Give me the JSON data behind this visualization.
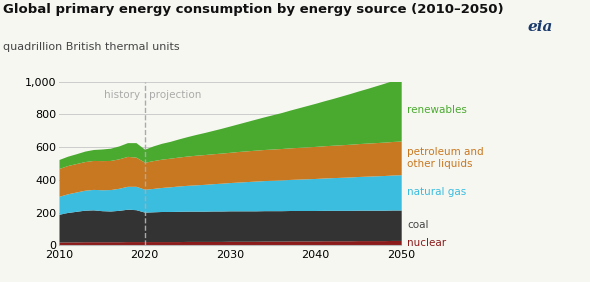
{
  "title": "Global primary energy consumption by energy source (2010–2050)",
  "subtitle": "quadrillion British thermal units",
  "years": [
    2010,
    2011,
    2012,
    2013,
    2014,
    2015,
    2016,
    2017,
    2018,
    2019,
    2020,
    2021,
    2022,
    2023,
    2024,
    2025,
    2026,
    2027,
    2028,
    2029,
    2030,
    2031,
    2032,
    2033,
    2034,
    2035,
    2036,
    2037,
    2038,
    2039,
    2040,
    2041,
    2042,
    2043,
    2044,
    2045,
    2046,
    2047,
    2048,
    2049,
    2050
  ],
  "nuclear": [
    20,
    21,
    21,
    22,
    22,
    22,
    22,
    22,
    23,
    23,
    23,
    23,
    23,
    23,
    23,
    24,
    24,
    24,
    24,
    24,
    25,
    25,
    25,
    25,
    26,
    26,
    26,
    27,
    27,
    27,
    27,
    28,
    28,
    28,
    28,
    29,
    29,
    29,
    29,
    30,
    30
  ],
  "coal": [
    170,
    180,
    187,
    193,
    195,
    190,
    188,
    192,
    198,
    195,
    180,
    182,
    184,
    184,
    185,
    185,
    185,
    185,
    186,
    186,
    186,
    186,
    186,
    186,
    186,
    186,
    186,
    186,
    186,
    186,
    186,
    186,
    186,
    186,
    186,
    186,
    186,
    186,
    186,
    186,
    186
  ],
  "natural_gas": [
    110,
    114,
    118,
    122,
    125,
    128,
    131,
    135,
    140,
    143,
    140,
    143,
    147,
    151,
    155,
    158,
    161,
    164,
    167,
    170,
    173,
    176,
    179,
    182,
    184,
    186,
    188,
    190,
    192,
    194,
    196,
    198,
    200,
    202,
    204,
    206,
    208,
    210,
    212,
    214,
    216
  ],
  "petroleum": [
    170,
    173,
    174,
    175,
    177,
    178,
    178,
    180,
    183,
    178,
    165,
    170,
    173,
    175,
    177,
    179,
    181,
    182,
    183,
    184,
    185,
    187,
    188,
    189,
    190,
    191,
    192,
    193,
    194,
    195,
    196,
    197,
    198,
    199,
    200,
    201,
    202,
    203,
    204,
    205,
    206
  ],
  "renewables": [
    55,
    57,
    60,
    64,
    67,
    71,
    75,
    79,
    84,
    89,
    80,
    90,
    97,
    103,
    111,
    119,
    127,
    135,
    143,
    152,
    161,
    170,
    180,
    190,
    200,
    210,
    220,
    231,
    242,
    253,
    264,
    275,
    286,
    298,
    310,
    322,
    334,
    347,
    360,
    373,
    385
  ],
  "colors": {
    "nuclear": "#8b1a1a",
    "coal": "#333333",
    "natural_gas": "#3bbde0",
    "petroleum": "#c87820",
    "renewables": "#4aaa30"
  },
  "labels": {
    "nuclear": "nuclear",
    "coal": "coal",
    "natural_gas": "natural gas",
    "petroleum": "petroleum and\nother liquids",
    "renewables": "renewables"
  },
  "label_colors": {
    "nuclear": "#8b1a1a",
    "coal": "#444444",
    "natural_gas": "#3bbde0",
    "petroleum": "#c87820",
    "renewables": "#4aaa30"
  },
  "ylim": [
    0,
    1000
  ],
  "yticks": [
    0,
    200,
    400,
    600,
    800,
    1000
  ],
  "ytick_labels": [
    "0",
    "200",
    "400",
    "600",
    "800",
    "1,000"
  ],
  "xlim": [
    2010,
    2050
  ],
  "xticks": [
    2010,
    2020,
    2030,
    2040,
    2050
  ],
  "history_year": 2020,
  "history_label": "history",
  "projection_label": "projection",
  "bg_color": "#f7f7f2",
  "grid_color": "#cccccc",
  "label_fontsize": 7.5,
  "title_fontsize": 9.5,
  "subtitle_fontsize": 8.0,
  "tick_fontsize": 8.0
}
